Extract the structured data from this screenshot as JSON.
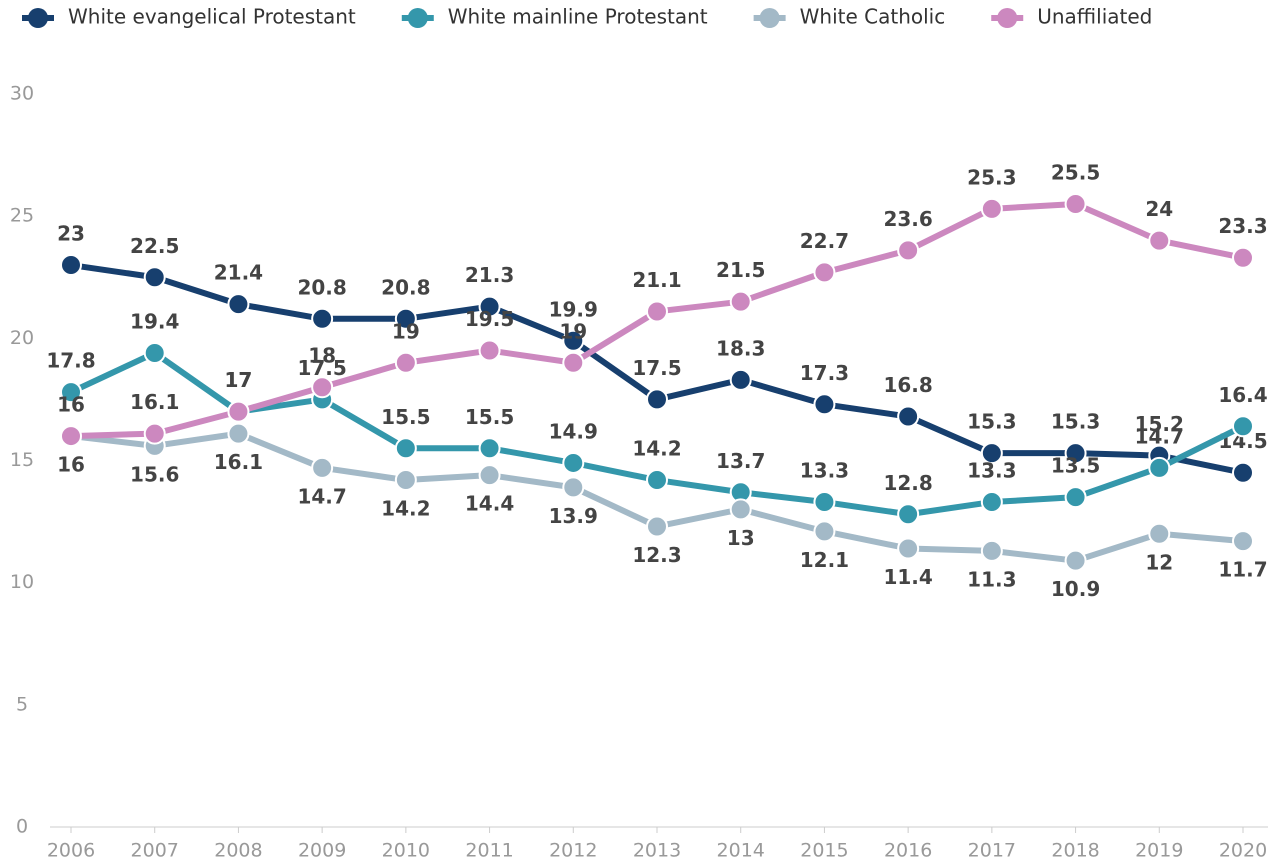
{
  "chart_data": {
    "type": "line",
    "categories": [
      "2006",
      "2007",
      "2008",
      "2009",
      "2010",
      "2011",
      "2012",
      "2013",
      "2014",
      "2015",
      "2016",
      "2017",
      "2018",
      "2019",
      "2020"
    ],
    "series": [
      {
        "name": "White evangelical Protestant",
        "color": "#173f6e",
        "values": [
          23,
          22.5,
          21.4,
          20.8,
          20.8,
          21.3,
          19.9,
          17.5,
          18.3,
          17.3,
          16.8,
          15.3,
          15.3,
          15.2,
          14.5
        ]
      },
      {
        "name": "White mainline Protestant",
        "color": "#3497ab",
        "values": [
          17.8,
          19.4,
          17,
          17.5,
          15.5,
          15.5,
          14.9,
          14.2,
          13.7,
          13.3,
          12.8,
          13.3,
          13.5,
          14.7,
          16.4
        ]
      },
      {
        "name": "White Catholic",
        "color": "#a3b9c7",
        "values": [
          16,
          15.6,
          16.1,
          14.7,
          14.2,
          14.4,
          13.9,
          12.3,
          13,
          12.1,
          11.4,
          11.3,
          10.9,
          12,
          11.7
        ]
      },
      {
        "name": "Unaffiliated",
        "color": "#cc88bf",
        "values": [
          16,
          16.1,
          17,
          18,
          19,
          19.5,
          19,
          21.1,
          21.5,
          22.7,
          23.6,
          25.3,
          25.5,
          24,
          23.3
        ]
      }
    ],
    "ylim": [
      0,
      30
    ],
    "yticks": [
      0,
      5,
      10,
      15,
      20,
      25,
      30
    ],
    "legend": "top"
  }
}
